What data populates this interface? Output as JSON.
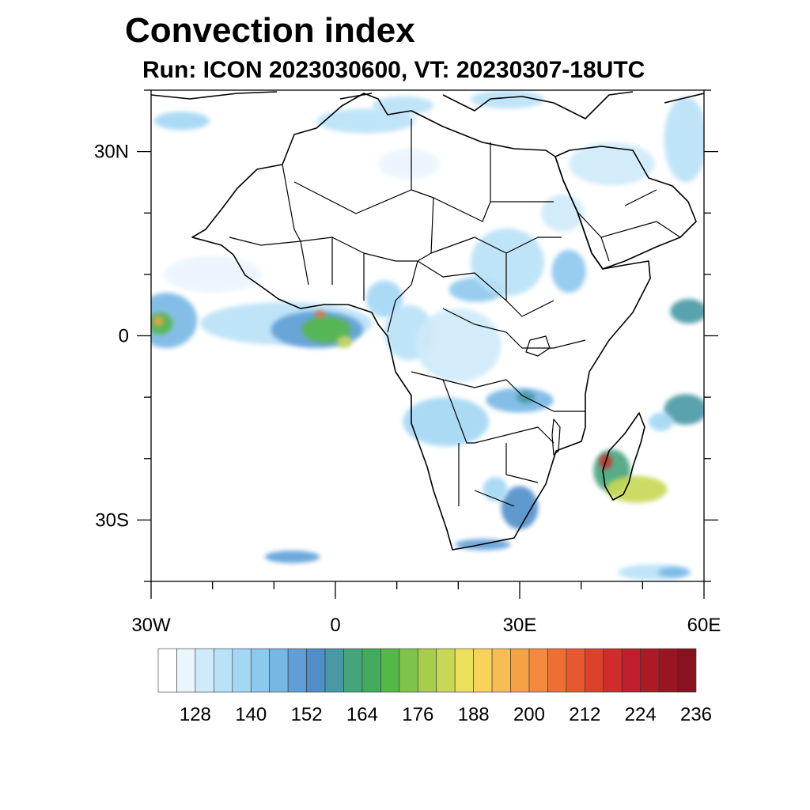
{
  "title": "Convection index",
  "subtitle": "Run: ICON 2023030600,  VT: 20230307-18UTC",
  "map": {
    "extent": {
      "lon_min": -30,
      "lon_max": 60,
      "lat_min": -40,
      "lat_max": 40
    },
    "lat_ticks": [
      {
        "lat": 30,
        "label": "30N"
      },
      {
        "lat": 0,
        "label": "0"
      },
      {
        "lat": -30,
        "label": "30S"
      }
    ],
    "lon_ticks": [
      {
        "lon": -30,
        "label": "30W"
      },
      {
        "lon": 0,
        "label": "0"
      },
      {
        "lon": 30,
        "label": "30E"
      },
      {
        "lon": 60,
        "label": "60E"
      }
    ],
    "minor_lat": [
      40,
      20,
      10,
      -10,
      -20,
      -40
    ],
    "minor_lon": [
      -20,
      -10,
      10,
      20,
      40,
      50
    ]
  },
  "colorbar": {
    "colors": [
      "#ffffff",
      "#eaf5fd",
      "#cfeaf9",
      "#b9e1f7",
      "#a3d7f4",
      "#8dc8ee",
      "#77b7e4",
      "#5f9fd6",
      "#4f8ec9",
      "#4a98a5",
      "#46a47d",
      "#42aa5c",
      "#54b748",
      "#80c24a",
      "#a6ce4c",
      "#c8d854",
      "#ece15c",
      "#f7d35c",
      "#f7bd53",
      "#f5a247",
      "#f2893c",
      "#ee6f33",
      "#e65830",
      "#dc412e",
      "#cf2d2c",
      "#bf1e2a",
      "#ab1a25",
      "#981622",
      "#86131f"
    ],
    "labels": [
      "128",
      "140",
      "152",
      "164",
      "176",
      "188",
      "200",
      "212",
      "224",
      "236"
    ]
  },
  "blobs": [
    {
      "lon": -27.5,
      "lat": 2.5,
      "rx": 5.0,
      "ry": 4.5,
      "level": 6
    },
    {
      "lon": -28.5,
      "lat": 2.0,
      "rx": 2.0,
      "ry": 1.8,
      "level": 12
    },
    {
      "lon": -28.8,
      "lat": 2.4,
      "rx": 0.8,
      "ry": 0.8,
      "level": 19
    },
    {
      "lon": -8.0,
      "lat": 2.0,
      "rx": 14.0,
      "ry": 3.5,
      "level": 3
    },
    {
      "lon": -3.0,
      "lat": 1.0,
      "rx": 7.5,
      "ry": 3.0,
      "level": 7
    },
    {
      "lon": -1.5,
      "lat": 1.0,
      "rx": 4.0,
      "ry": 2.2,
      "level": 12
    },
    {
      "lon": -2.5,
      "lat": 3.5,
      "rx": 0.8,
      "ry": 0.6,
      "level": 21
    },
    {
      "lon": 1.5,
      "lat": -1.0,
      "rx": 1.2,
      "ry": 1.0,
      "level": 15
    },
    {
      "lon": 8.0,
      "lat": 6.0,
      "rx": 3.0,
      "ry": 3.0,
      "level": 4
    },
    {
      "lon": 12.0,
      "lat": 0.5,
      "rx": 4.0,
      "ry": 4.5,
      "level": 3
    },
    {
      "lon": 20.0,
      "lat": -1.5,
      "rx": 7.0,
      "ry": 6.0,
      "level": 2
    },
    {
      "lon": 23.0,
      "lat": 7.5,
      "rx": 4.5,
      "ry": 2.0,
      "level": 5
    },
    {
      "lon": 28.0,
      "lat": 12.0,
      "rx": 6.0,
      "ry": 5.5,
      "level": 3
    },
    {
      "lon": 38.0,
      "lat": 10.5,
      "rx": 2.8,
      "ry": 3.5,
      "level": 5
    },
    {
      "lon": 18.0,
      "lat": -14.0,
      "rx": 7.0,
      "ry": 4.0,
      "level": 4
    },
    {
      "lon": 30.0,
      "lat": -10.5,
      "rx": 5.5,
      "ry": 2.0,
      "level": 6
    },
    {
      "lon": 31.0,
      "lat": -10.0,
      "rx": 1.5,
      "ry": 1.0,
      "level": 9
    },
    {
      "lon": 30.0,
      "lat": -28.0,
      "rx": 3.0,
      "ry": 3.5,
      "level": 8
    },
    {
      "lon": 26.0,
      "lat": -25.0,
      "rx": 2.0,
      "ry": 2.0,
      "level": 4
    },
    {
      "lon": 24.0,
      "lat": -34.0,
      "rx": 4.5,
      "ry": 0.9,
      "level": 7
    },
    {
      "lon": 45.0,
      "lat": -22.0,
      "rx": 3.0,
      "ry": 3.5,
      "level": 10
    },
    {
      "lon": 44.0,
      "lat": -20.5,
      "rx": 1.0,
      "ry": 1.2,
      "level": 24
    },
    {
      "lon": 49.0,
      "lat": -25.0,
      "rx": 5.0,
      "ry": 2.2,
      "level": 15
    },
    {
      "lon": 57.0,
      "lat": -12.0,
      "rx": 3.5,
      "ry": 2.5,
      "level": 9
    },
    {
      "lon": 57.5,
      "lat": 4.0,
      "rx": 3.0,
      "ry": 2.0,
      "level": 9
    },
    {
      "lon": 53.0,
      "lat": -14.0,
      "rx": 2.0,
      "ry": 1.5,
      "level": 4
    },
    {
      "lon": 57.0,
      "lat": 32.0,
      "rx": 3.5,
      "ry": 7.0,
      "level": 3
    },
    {
      "lon": 45.0,
      "lat": 28.0,
      "rx": 7.0,
      "ry": 3.5,
      "level": 2
    },
    {
      "lon": 5.0,
      "lat": 35.0,
      "rx": 8.0,
      "ry": 2.0,
      "level": 3
    },
    {
      "lon": -25.0,
      "lat": 35.0,
      "rx": 4.5,
      "ry": 1.5,
      "level": 4
    },
    {
      "lon": 28.0,
      "lat": 38.5,
      "rx": 6.0,
      "ry": 1.5,
      "level": 3
    },
    {
      "lon": 11.0,
      "lat": 37.5,
      "rx": 5.0,
      "ry": 1.5,
      "level": 3
    },
    {
      "lon": -7.0,
      "lat": -36.0,
      "rx": 4.5,
      "ry": 1.0,
      "level": 7
    },
    {
      "lon": 52.0,
      "lat": -38.5,
      "rx": 6.0,
      "ry": 1.3,
      "level": 3
    },
    {
      "lon": 55.0,
      "lat": -38.5,
      "rx": 2.5,
      "ry": 0.8,
      "level": 6
    },
    {
      "lon": -20.0,
      "lat": 10.0,
      "rx": 8.0,
      "ry": 3.0,
      "level": 1
    },
    {
      "lon": 37.0,
      "lat": 20.0,
      "rx": 3.5,
      "ry": 3.0,
      "level": 2
    },
    {
      "lon": 12.0,
      "lat": 28.0,
      "rx": 5.0,
      "ry": 2.5,
      "level": 1
    }
  ]
}
